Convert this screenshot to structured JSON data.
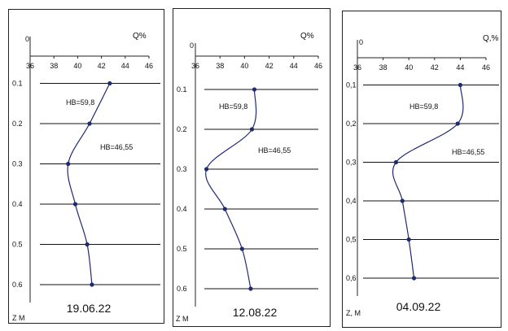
{
  "chart_data": [
    {
      "type": "line",
      "xlabel": "Q%",
      "ylabel": "Z M",
      "xlim": [
        36,
        46
      ],
      "x_ticks": [
        "36",
        "38",
        "40",
        "42",
        "44",
        "46"
      ],
      "y_ticks": [
        "0",
        "0.1",
        "0.2",
        "0.3",
        "0.4",
        "0.5",
        "0.6"
      ],
      "series": [
        {
          "x": [
            42.7,
            41.0,
            39.2,
            39.8,
            40.8,
            41.2
          ],
          "y": [
            0.1,
            0.2,
            0.3,
            0.4,
            0.5,
            0.6
          ]
        }
      ],
      "annotations": [
        "HB=59,8",
        "HB=46,55"
      ],
      "caption": "19.06.22"
    },
    {
      "type": "line",
      "xlabel": "Q%",
      "ylabel": "Z M",
      "xlim": [
        36,
        46
      ],
      "x_ticks": [
        "36",
        "38",
        "40",
        "42",
        "44",
        "46"
      ],
      "y_ticks": [
        "0",
        "0.1",
        "0.2",
        "0.3",
        "0.4",
        "0.5",
        "0.6"
      ],
      "series": [
        {
          "x": [
            40.8,
            40.6,
            36.9,
            38.4,
            39.8,
            40.5
          ],
          "y": [
            0.1,
            0.2,
            0.3,
            0.4,
            0.5,
            0.6
          ]
        }
      ],
      "annotations": [
        "HB=59,8",
        "HB=46,55"
      ],
      "caption": "12.08.22"
    },
    {
      "type": "line",
      "xlabel": "Q,%",
      "ylabel": "Z, M",
      "xlim": [
        36,
        46
      ],
      "x_ticks": [
        "36",
        "38",
        "40",
        "42",
        "44",
        "46"
      ],
      "y_ticks": [
        "0",
        "0,1",
        "0,2",
        "0,3",
        "0,4",
        "0,5",
        "0,6"
      ],
      "series": [
        {
          "x": [
            44.0,
            43.8,
            39.0,
            39.5,
            40.0,
            40.4
          ],
          "y": [
            0.1,
            0.2,
            0.3,
            0.4,
            0.5,
            0.6
          ]
        }
      ],
      "annotations": [
        "HB=59,8",
        "HB=46,55"
      ],
      "caption": "04.09.22"
    }
  ]
}
